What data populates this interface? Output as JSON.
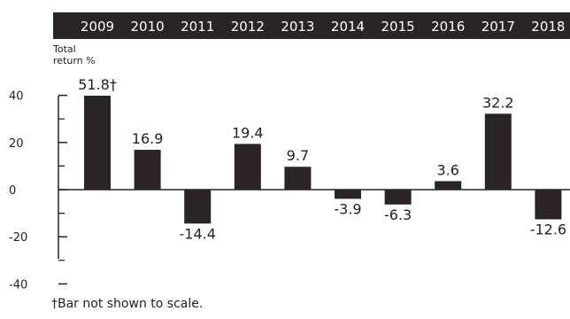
{
  "chart_data": {
    "type": "bar",
    "categories": [
      "2009",
      "2010",
      "2011",
      "2012",
      "2013",
      "2014",
      "2015",
      "2016",
      "2017",
      "2018"
    ],
    "values": [
      51.8,
      16.9,
      -14.4,
      19.4,
      9.7,
      -3.9,
      -6.3,
      3.6,
      32.2,
      -12.6
    ],
    "value_labels": [
      "51.8†",
      "16.9",
      "-14.4",
      "19.4",
      "9.7",
      "-3.9",
      "-6.3",
      "3.6",
      "32.2",
      "-12.6"
    ],
    "ylabel_line1": "Total",
    "ylabel_line2": "return %",
    "yticks": [
      40,
      20,
      0,
      -20,
      -40
    ],
    "ylim": [
      -40,
      40
    ],
    "category_axis_position": "top",
    "header_color": "#2a2426",
    "bar_color": "#2a2426",
    "footnote": "†Bar not shown to scale."
  }
}
